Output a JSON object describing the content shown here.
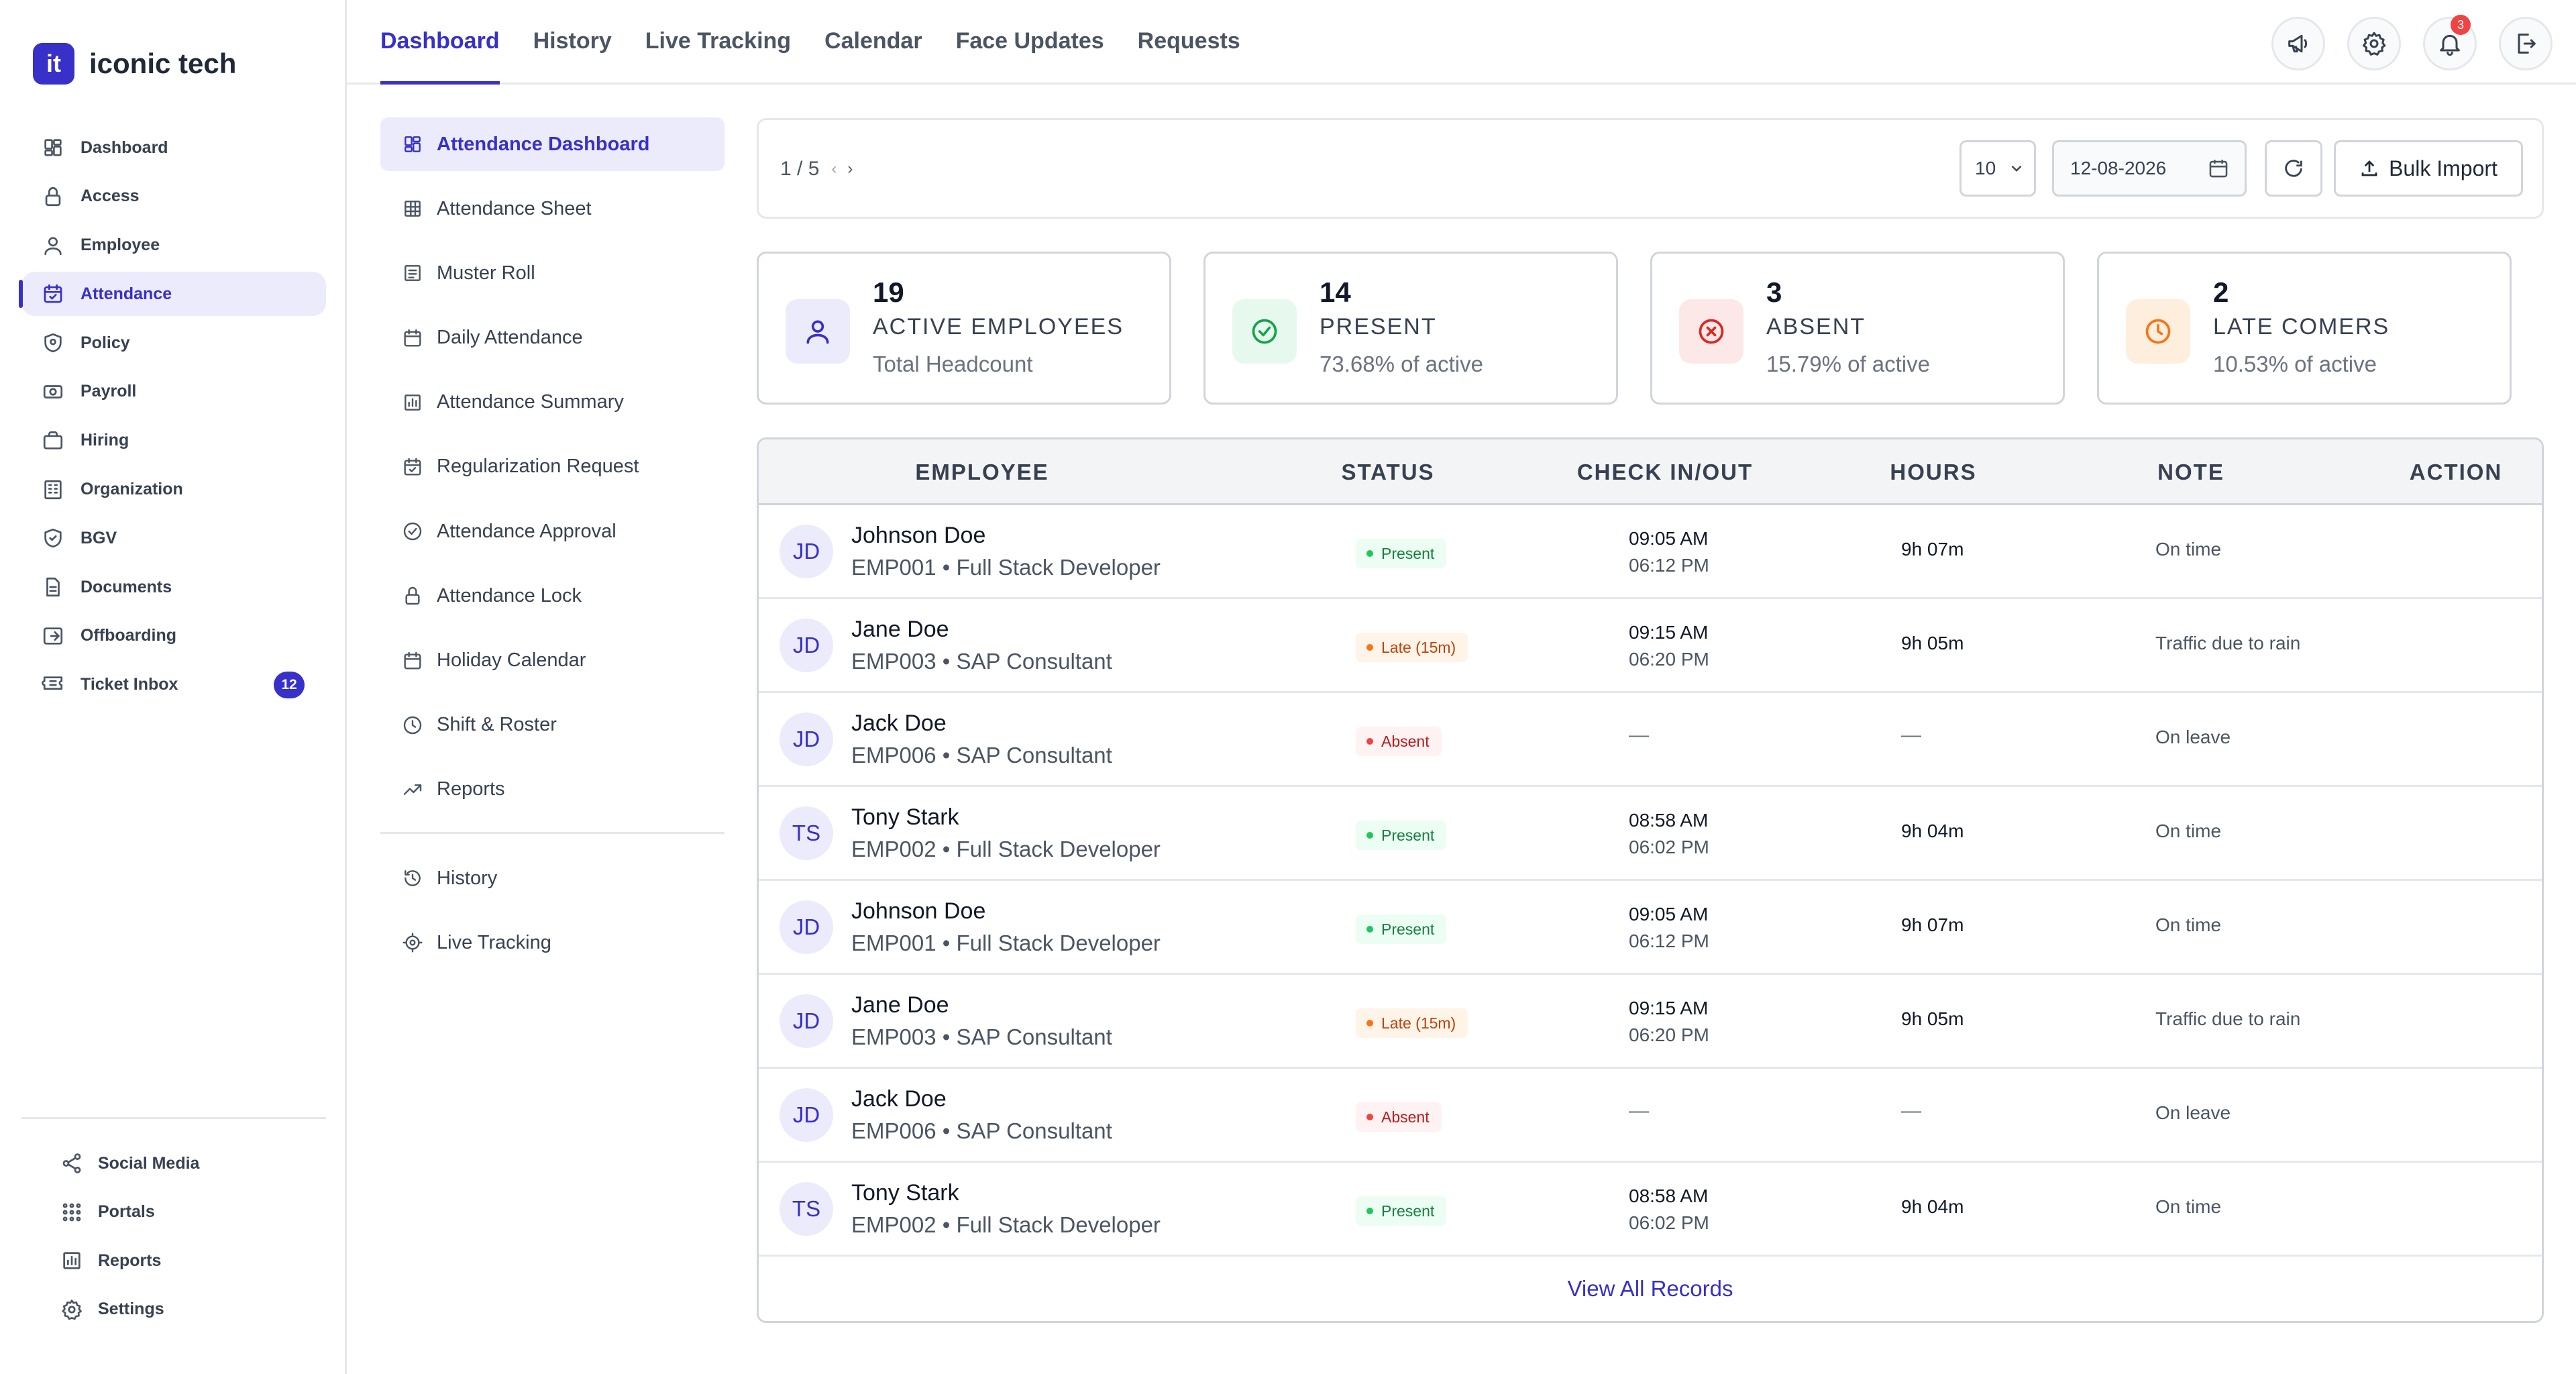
{
  "brand": {
    "logo_text": "it",
    "name": "iconic tech",
    "accent": "#3730c9"
  },
  "sidebar": {
    "items": [
      {
        "label": "Dashboard",
        "icon": "dashboard-grid-icon"
      },
      {
        "label": "Access",
        "icon": "lock-icon"
      },
      {
        "label": "Employee",
        "icon": "user-icon"
      },
      {
        "label": "Attendance",
        "icon": "calendar-check-icon",
        "active": true
      },
      {
        "label": "Policy",
        "icon": "shield-icon"
      },
      {
        "label": "Payroll",
        "icon": "money-icon"
      },
      {
        "label": "Hiring",
        "icon": "briefcase-icon"
      },
      {
        "label": "Organization",
        "icon": "building-icon"
      },
      {
        "label": "BGV",
        "icon": "shield-check-icon"
      },
      {
        "label": "Documents",
        "icon": "document-icon"
      },
      {
        "label": "Offboarding",
        "icon": "exit-icon"
      },
      {
        "label": "Ticket Inbox",
        "icon": "ticket-icon",
        "badge": "12"
      }
    ],
    "bottom_items": [
      {
        "label": "Social Media",
        "icon": "share-icon"
      },
      {
        "label": "Portals",
        "icon": "grid-dots-icon"
      },
      {
        "label": "Reports",
        "icon": "bar-chart-icon"
      },
      {
        "label": "Settings",
        "icon": "gear-icon"
      }
    ]
  },
  "topbar": {
    "tabs": [
      {
        "label": "Dashboard",
        "active": true
      },
      {
        "label": "History"
      },
      {
        "label": "Live Tracking"
      },
      {
        "label": "Calendar"
      },
      {
        "label": "Face Updates"
      },
      {
        "label": "Requests"
      }
    ],
    "icons": [
      "megaphone-icon",
      "gear-icon",
      "bell-icon",
      "logout-icon"
    ],
    "notification_count": "3"
  },
  "submenu": {
    "items": [
      {
        "label": "Attendance Dashboard",
        "icon": "dashboard-grid-icon",
        "active": true
      },
      {
        "label": "Attendance Sheet",
        "icon": "table-icon"
      },
      {
        "label": "Muster Roll",
        "icon": "list-icon"
      },
      {
        "label": "Daily Attendance",
        "icon": "calendar-icon"
      },
      {
        "label": "Attendance Summary",
        "icon": "bar-chart-icon"
      },
      {
        "label": "Regularization Request",
        "icon": "calendar-check-icon"
      },
      {
        "label": "Attendance Approval",
        "icon": "check-circle-icon"
      },
      {
        "label": "Attendance Lock",
        "icon": "lock-icon"
      },
      {
        "label": "Holiday Calendar",
        "icon": "calendar-icon"
      },
      {
        "label": "Shift & Roster",
        "icon": "clock-icon"
      },
      {
        "label": "Reports",
        "icon": "trend-icon"
      }
    ],
    "secondary": [
      {
        "label": "History",
        "icon": "history-icon"
      },
      {
        "label": "Live Tracking",
        "icon": "target-icon"
      }
    ]
  },
  "toolbar": {
    "page_indicator": "1 / 5",
    "prev_icon": "chevron-left-icon",
    "next_icon": "chevron-right-icon",
    "per_page": "10",
    "date": "12-08-2026",
    "bulk_import_label": "Bulk Import"
  },
  "stats": [
    {
      "value": "19",
      "label": "ACTIVE EMPLOYEES",
      "sub": "Total Headcount",
      "icon": "user-icon",
      "color": "#3730c9",
      "bg": "#ecebfb"
    },
    {
      "value": "14",
      "label": "PRESENT",
      "sub": "73.68% of active",
      "icon": "check-circle-icon",
      "color": "#16a34a",
      "bg": "#e7f8ee"
    },
    {
      "value": "3",
      "label": "ABSENT",
      "sub": "15.79% of active",
      "icon": "x-circle-icon",
      "color": "#dc2626",
      "bg": "#fde8e8"
    },
    {
      "value": "2",
      "label": "LATE COMERS",
      "sub": "10.53% of active",
      "icon": "clock-icon",
      "color": "#f97316",
      "bg": "#feeedd"
    }
  ],
  "table": {
    "columns": [
      "EMPLOYEE",
      "STATUS",
      "CHECK IN/OUT",
      "HOURS",
      "NOTE",
      "ACTION"
    ],
    "rows": [
      {
        "initials": "JD",
        "name": "Johnson Doe",
        "meta": "EMP001 • Full Stack Developer",
        "status": "Present",
        "status_kind": "present",
        "check_in": "09:05 AM",
        "check_out": "06:12 PM",
        "hours": "9h 07m",
        "note": "On time"
      },
      {
        "initials": "JD",
        "name": "Jane Doe",
        "meta": "EMP003 • SAP Consultant",
        "status": "Late (15m)",
        "status_kind": "late",
        "check_in": "09:15 AM",
        "check_out": "06:20 PM",
        "hours": "9h 05m",
        "note": "Traffic due to rain"
      },
      {
        "initials": "JD",
        "name": "Jack Doe",
        "meta": "EMP006 • SAP Consultant",
        "status": "Absent",
        "status_kind": "absent",
        "check_in": "",
        "check_out": "",
        "hours": "",
        "note": "On leave"
      },
      {
        "initials": "TS",
        "name": "Tony Stark",
        "meta": "EMP002 • Full Stack Developer",
        "status": "Present",
        "status_kind": "present",
        "check_in": "08:58 AM",
        "check_out": "06:02 PM",
        "hours": "9h 04m",
        "note": "On time"
      },
      {
        "initials": "JD",
        "name": "Johnson Doe",
        "meta": "EMP001 • Full Stack Developer",
        "status": "Present",
        "status_kind": "present",
        "check_in": "09:05 AM",
        "check_out": "06:12 PM",
        "hours": "9h 07m",
        "note": "On time"
      },
      {
        "initials": "JD",
        "name": "Jane Doe",
        "meta": "EMP003 • SAP Consultant",
        "status": "Late (15m)",
        "status_kind": "late",
        "check_in": "09:15 AM",
        "check_out": "06:20 PM",
        "hours": "9h 05m",
        "note": "Traffic due to rain"
      },
      {
        "initials": "JD",
        "name": "Jack Doe",
        "meta": "EMP006 • SAP Consultant",
        "status": "Absent",
        "status_kind": "absent",
        "check_in": "",
        "check_out": "",
        "hours": "",
        "note": "On leave"
      },
      {
        "initials": "TS",
        "name": "Tony Stark",
        "meta": "EMP002 • Full Stack Developer",
        "status": "Present",
        "status_kind": "present",
        "check_in": "08:58 AM",
        "check_out": "06:02 PM",
        "hours": "9h 04m",
        "note": "On time"
      }
    ],
    "empty_placeholder": "—",
    "view_all_label": "View All Records"
  }
}
